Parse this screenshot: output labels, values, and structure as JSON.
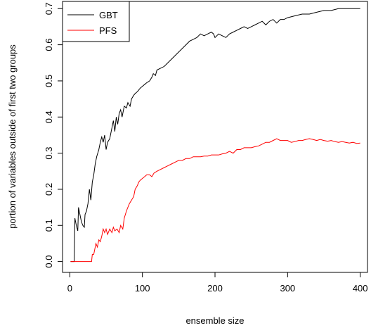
{
  "chart_data": {
    "type": "line",
    "xlabel": "ensemble size",
    "ylabel": "portion of variables outside of first two groups",
    "xlim": [
      -10,
      410
    ],
    "ylim": [
      -0.03,
      0.72
    ],
    "x_ticks": [
      0,
      100,
      200,
      300,
      400
    ],
    "y_ticks": [
      0.0,
      0.1,
      0.2,
      0.3,
      0.4,
      0.5,
      0.6,
      0.7
    ],
    "x_tick_labels": [
      "0",
      "100",
      "200",
      "300",
      "400"
    ],
    "y_tick_labels": [
      "0.0",
      "0.1",
      "0.2",
      "0.3",
      "0.4",
      "0.5",
      "0.6",
      "0.7"
    ],
    "grid": false,
    "legend_position": "top-left",
    "series": [
      {
        "name": "GBT",
        "color": "#000000",
        "points": [
          [
            1,
            0
          ],
          [
            6,
            0
          ],
          [
            7,
            0.12
          ],
          [
            9,
            0.1
          ],
          [
            11,
            0.085
          ],
          [
            12,
            0.15
          ],
          [
            14,
            0.13
          ],
          [
            16,
            0.11
          ],
          [
            18,
            0.1
          ],
          [
            20,
            0.095
          ],
          [
            21,
            0.13
          ],
          [
            23,
            0.14
          ],
          [
            25,
            0.16
          ],
          [
            27,
            0.2
          ],
          [
            29,
            0.17
          ],
          [
            31,
            0.22
          ],
          [
            33,
            0.24
          ],
          [
            35,
            0.27
          ],
          [
            37,
            0.29
          ],
          [
            40,
            0.31
          ],
          [
            42,
            0.33
          ],
          [
            44,
            0.345
          ],
          [
            46,
            0.33
          ],
          [
            48,
            0.35
          ],
          [
            50,
            0.31
          ],
          [
            52,
            0.33
          ],
          [
            55,
            0.34
          ],
          [
            58,
            0.37
          ],
          [
            60,
            0.39
          ],
          [
            62,
            0.36
          ],
          [
            64,
            0.4
          ],
          [
            66,
            0.38
          ],
          [
            68,
            0.41
          ],
          [
            70,
            0.42
          ],
          [
            72,
            0.4
          ],
          [
            75,
            0.43
          ],
          [
            78,
            0.425
          ],
          [
            80,
            0.44
          ],
          [
            83,
            0.43
          ],
          [
            85,
            0.45
          ],
          [
            88,
            0.46
          ],
          [
            90,
            0.465
          ],
          [
            93,
            0.47
          ],
          [
            95,
            0.475
          ],
          [
            97,
            0.48
          ],
          [
            100,
            0.485
          ],
          [
            103,
            0.49
          ],
          [
            106,
            0.495
          ],
          [
            110,
            0.5
          ],
          [
            113,
            0.51
          ],
          [
            115,
            0.52
          ],
          [
            118,
            0.515
          ],
          [
            120,
            0.53
          ],
          [
            125,
            0.535
          ],
          [
            130,
            0.54
          ],
          [
            135,
            0.55
          ],
          [
            140,
            0.56
          ],
          [
            145,
            0.57
          ],
          [
            150,
            0.58
          ],
          [
            155,
            0.59
          ],
          [
            160,
            0.6
          ],
          [
            165,
            0.61
          ],
          [
            170,
            0.615
          ],
          [
            175,
            0.62
          ],
          [
            180,
            0.63
          ],
          [
            185,
            0.625
          ],
          [
            190,
            0.63
          ],
          [
            195,
            0.635
          ],
          [
            198,
            0.63
          ],
          [
            200,
            0.62
          ],
          [
            205,
            0.63
          ],
          [
            210,
            0.625
          ],
          [
            215,
            0.62
          ],
          [
            220,
            0.63
          ],
          [
            225,
            0.635
          ],
          [
            230,
            0.64
          ],
          [
            235,
            0.645
          ],
          [
            240,
            0.65
          ],
          [
            245,
            0.645
          ],
          [
            250,
            0.65
          ],
          [
            255,
            0.655
          ],
          [
            260,
            0.66
          ],
          [
            265,
            0.665
          ],
          [
            270,
            0.655
          ],
          [
            275,
            0.665
          ],
          [
            280,
            0.67
          ],
          [
            285,
            0.66
          ],
          [
            290,
            0.67
          ],
          [
            295,
            0.67
          ],
          [
            300,
            0.675
          ],
          [
            310,
            0.68
          ],
          [
            320,
            0.685
          ],
          [
            330,
            0.685
          ],
          [
            340,
            0.69
          ],
          [
            350,
            0.695
          ],
          [
            360,
            0.695
          ],
          [
            370,
            0.7
          ],
          [
            380,
            0.7
          ],
          [
            390,
            0.7
          ],
          [
            400,
            0.7
          ]
        ]
      },
      {
        "name": "PFS",
        "color": "#ff0000",
        "points": [
          [
            1,
            0
          ],
          [
            30,
            0
          ],
          [
            31,
            0.02
          ],
          [
            33,
            0.02
          ],
          [
            34,
            0.03
          ],
          [
            36,
            0.05
          ],
          [
            38,
            0.04
          ],
          [
            40,
            0.06
          ],
          [
            42,
            0.055
          ],
          [
            44,
            0.07
          ],
          [
            46,
            0.09
          ],
          [
            48,
            0.08
          ],
          [
            50,
            0.09
          ],
          [
            52,
            0.075
          ],
          [
            55,
            0.09
          ],
          [
            58,
            0.08
          ],
          [
            60,
            0.095
          ],
          [
            62,
            0.085
          ],
          [
            65,
            0.09
          ],
          [
            68,
            0.08
          ],
          [
            70,
            0.1
          ],
          [
            73,
            0.09
          ],
          [
            75,
            0.12
          ],
          [
            78,
            0.14
          ],
          [
            80,
            0.15
          ],
          [
            82,
            0.16
          ],
          [
            85,
            0.17
          ],
          [
            88,
            0.18
          ],
          [
            90,
            0.2
          ],
          [
            93,
            0.21
          ],
          [
            95,
            0.22
          ],
          [
            97,
            0.225
          ],
          [
            100,
            0.23
          ],
          [
            103,
            0.235
          ],
          [
            106,
            0.24
          ],
          [
            110,
            0.24
          ],
          [
            113,
            0.235
          ],
          [
            116,
            0.245
          ],
          [
            120,
            0.25
          ],
          [
            125,
            0.255
          ],
          [
            130,
            0.26
          ],
          [
            135,
            0.265
          ],
          [
            140,
            0.27
          ],
          [
            145,
            0.275
          ],
          [
            150,
            0.28
          ],
          [
            155,
            0.28
          ],
          [
            160,
            0.285
          ],
          [
            165,
            0.285
          ],
          [
            170,
            0.29
          ],
          [
            175,
            0.29
          ],
          [
            180,
            0.29
          ],
          [
            185,
            0.292
          ],
          [
            190,
            0.292
          ],
          [
            195,
            0.295
          ],
          [
            200,
            0.295
          ],
          [
            205,
            0.295
          ],
          [
            210,
            0.298
          ],
          [
            215,
            0.3
          ],
          [
            220,
            0.305
          ],
          [
            225,
            0.3
          ],
          [
            230,
            0.31
          ],
          [
            235,
            0.31
          ],
          [
            240,
            0.315
          ],
          [
            245,
            0.315
          ],
          [
            250,
            0.315
          ],
          [
            255,
            0.318
          ],
          [
            260,
            0.32
          ],
          [
            265,
            0.325
          ],
          [
            270,
            0.33
          ],
          [
            275,
            0.33
          ],
          [
            280,
            0.335
          ],
          [
            285,
            0.34
          ],
          [
            290,
            0.335
          ],
          [
            295,
            0.335
          ],
          [
            300,
            0.335
          ],
          [
            305,
            0.33
          ],
          [
            310,
            0.332
          ],
          [
            315,
            0.335
          ],
          [
            320,
            0.335
          ],
          [
            325,
            0.338
          ],
          [
            330,
            0.34
          ],
          [
            335,
            0.338
          ],
          [
            340,
            0.335
          ],
          [
            345,
            0.338
          ],
          [
            350,
            0.335
          ],
          [
            355,
            0.333
          ],
          [
            360,
            0.335
          ],
          [
            365,
            0.332
          ],
          [
            370,
            0.33
          ],
          [
            375,
            0.332
          ],
          [
            380,
            0.33
          ],
          [
            385,
            0.328
          ],
          [
            390,
            0.33
          ],
          [
            395,
            0.327
          ],
          [
            400,
            0.328
          ]
        ]
      }
    ]
  }
}
